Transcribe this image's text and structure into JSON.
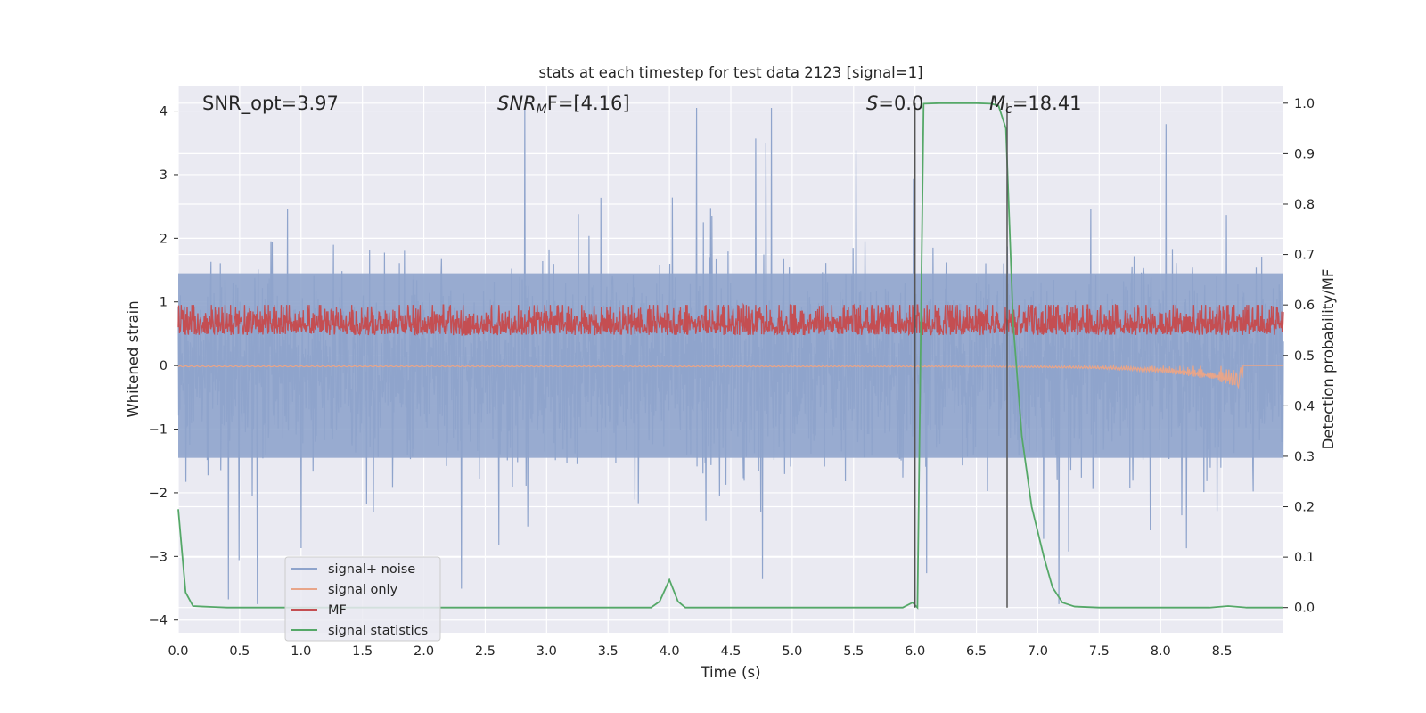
{
  "chart_data": {
    "type": "line",
    "title": "stats at each timestep for test data 2123 [signal=1]",
    "xlabel": "Time (s)",
    "ylabel": "Whitened strain",
    "ylabel_right": "Detection probability/MF",
    "xlim": [
      0,
      9
    ],
    "ylim": [
      -4.2,
      4.4
    ],
    "ylim_right": [
      -0.05,
      1.035
    ],
    "x_ticks": [
      "0.0",
      "0.5",
      "1.0",
      "1.5",
      "2.0",
      "2.5",
      "3.0",
      "3.5",
      "4.0",
      "4.5",
      "5.0",
      "5.5",
      "6.0",
      "6.5",
      "7.0",
      "7.5",
      "8.0",
      "8.5"
    ],
    "x_tick_values": [
      0,
      0.5,
      1,
      1.5,
      2,
      2.5,
      3,
      3.5,
      4,
      4.5,
      5,
      5.5,
      6,
      6.5,
      7,
      7.5,
      8,
      8.5
    ],
    "y_ticks": [
      "4",
      "3",
      "2",
      "1",
      "0",
      "−1",
      "−2",
      "−3",
      "−4"
    ],
    "y_tick_values": [
      4,
      3,
      2,
      1,
      0,
      -1,
      -2,
      -3,
      -4
    ],
    "y_right_ticks": [
      "1.0",
      "0.9",
      "0.8",
      "0.7",
      "0.6",
      "0.5",
      "0.4",
      "0.3",
      "0.2",
      "0.1",
      "0.0"
    ],
    "y_right_tick_values": [
      1.0,
      0.9,
      0.8,
      0.7,
      0.6,
      0.5,
      0.4,
      0.3,
      0.2,
      0.1,
      0.0
    ],
    "annotations": {
      "snr_opt": "SNR_opt=3.97",
      "snr_mf_sym": "SNR",
      "snr_mf_sub": "M",
      "snr_mf_rest": "F=[4.16]",
      "s_sym": "S",
      "s_rest": "=0.0",
      "mc_sym": "M",
      "mc_sub": "c",
      "mc_rest": "=18.41"
    },
    "vertical_lines_x": [
      6.0,
      6.75
    ],
    "legend": {
      "position": "lower-left",
      "entries": [
        "signal+ noise",
        "signal only",
        "MF",
        "signal statistics"
      ]
    },
    "series": [
      {
        "name": "signal+ noise",
        "axis": "left",
        "color": "#8fa4cc",
        "noise_std": 0.7,
        "envelope": [
          -1.45,
          1.45
        ]
      },
      {
        "name": "signal only",
        "axis": "left",
        "color": "#e8a589",
        "chirp_end": 8.67
      },
      {
        "name": "MF",
        "axis": "right",
        "color": "#c44e52",
        "baseline": 0.54
      },
      {
        "name": "signal statistics",
        "axis": "right",
        "color": "#55a868",
        "x": [
          0,
          0.06,
          0.12,
          0.2,
          0.3,
          0.4,
          0.5,
          1.0,
          2.0,
          3.0,
          3.85,
          3.92,
          4.0,
          4.07,
          4.13,
          4.3,
          5.0,
          5.9,
          5.98,
          6.02,
          6.07,
          6.2,
          6.5,
          6.62,
          6.68,
          6.74,
          6.8,
          6.87,
          6.95,
          7.05,
          7.12,
          7.2,
          7.3,
          7.5,
          8.0,
          8.4,
          8.55,
          8.7,
          9.0
        ],
        "values": [
          0.195,
          0.03,
          0.003,
          0.002,
          0.001,
          0.0,
          0.0,
          0.0,
          0.0,
          0.0,
          0.0,
          0.012,
          0.055,
          0.012,
          0.0,
          0.0,
          0.0,
          0.0,
          0.01,
          0.0,
          0.999,
          1.0,
          1.0,
          0.999,
          0.995,
          0.95,
          0.56,
          0.34,
          0.2,
          0.1,
          0.04,
          0.01,
          0.002,
          0.0,
          0.0,
          0.0,
          0.003,
          0.0,
          0.0
        ]
      }
    ]
  }
}
